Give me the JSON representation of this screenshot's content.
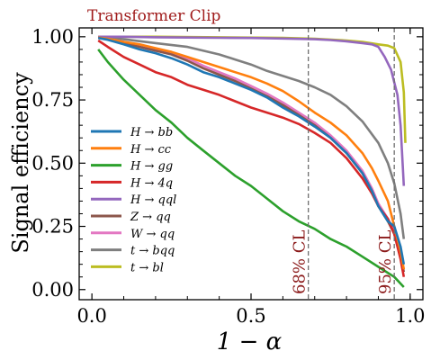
{
  "chart_data": {
    "type": "line",
    "title": "Transformer Clip",
    "title_color": "#a01c1c",
    "xlabel": "1 − α",
    "ylabel": "Signal efficiency",
    "xlim": [
      -0.04,
      1.04
    ],
    "ylim": [
      -0.04,
      1.035
    ],
    "xticks": [
      0.0,
      0.5,
      1.0
    ],
    "xtick_labels": [
      "0.0",
      "0.5",
      "1.0"
    ],
    "yticks": [
      0.0,
      0.25,
      0.5,
      0.75,
      1.0
    ],
    "ytick_labels": [
      "0.00",
      "0.25",
      "0.50",
      "0.75",
      "1.00"
    ],
    "grid": false,
    "legend_position": "center-left",
    "vlines": [
      {
        "x": 0.68,
        "label": "68% CL",
        "color": "#6e6e6e",
        "label_color": "#8b1a1a"
      },
      {
        "x": 0.95,
        "label": "95% CL",
        "color": "#6e6e6e",
        "label_color": "#8b1a1a"
      }
    ],
    "series": [
      {
        "name": "H → bb",
        "color": "#1f77b4",
        "x": [
          0.02,
          0.05,
          0.1,
          0.15,
          0.2,
          0.25,
          0.3,
          0.35,
          0.4,
          0.45,
          0.5,
          0.55,
          0.6,
          0.65,
          0.7,
          0.75,
          0.8,
          0.85,
          0.88,
          0.9,
          0.93,
          0.95,
          0.97,
          0.98
        ],
        "y": [
          0.995,
          0.988,
          0.97,
          0.95,
          0.935,
          0.915,
          0.89,
          0.86,
          0.84,
          0.815,
          0.79,
          0.76,
          0.72,
          0.685,
          0.645,
          0.6,
          0.54,
          0.46,
          0.39,
          0.33,
          0.27,
          0.25,
          0.17,
          0.1
        ]
      },
      {
        "name": "H → cc",
        "color": "#ff7f0e",
        "x": [
          0.02,
          0.05,
          0.1,
          0.15,
          0.2,
          0.25,
          0.3,
          0.35,
          0.4,
          0.45,
          0.5,
          0.55,
          0.6,
          0.65,
          0.7,
          0.75,
          0.8,
          0.85,
          0.88,
          0.9,
          0.93,
          0.95,
          0.97,
          0.98
        ],
        "y": [
          0.997,
          0.992,
          0.98,
          0.97,
          0.955,
          0.94,
          0.92,
          0.9,
          0.88,
          0.86,
          0.84,
          0.815,
          0.785,
          0.745,
          0.7,
          0.66,
          0.61,
          0.54,
          0.48,
          0.43,
          0.35,
          0.25,
          0.15,
          0.08
        ]
      },
      {
        "name": "H → gg",
        "color": "#2ca02c",
        "x": [
          0.02,
          0.05,
          0.1,
          0.15,
          0.2,
          0.25,
          0.3,
          0.35,
          0.4,
          0.45,
          0.5,
          0.55,
          0.6,
          0.65,
          0.7,
          0.75,
          0.8,
          0.85,
          0.9,
          0.95,
          0.98
        ],
        "y": [
          0.95,
          0.9,
          0.83,
          0.77,
          0.71,
          0.66,
          0.6,
          0.55,
          0.5,
          0.45,
          0.41,
          0.36,
          0.31,
          0.27,
          0.24,
          0.2,
          0.17,
          0.13,
          0.09,
          0.05,
          0.01
        ]
      },
      {
        "name": "H → 4q",
        "color": "#d62728",
        "x": [
          0.02,
          0.05,
          0.1,
          0.15,
          0.2,
          0.25,
          0.3,
          0.35,
          0.4,
          0.45,
          0.5,
          0.55,
          0.6,
          0.65,
          0.7,
          0.75,
          0.8,
          0.85,
          0.88,
          0.9,
          0.93,
          0.95,
          0.97,
          0.98
        ],
        "y": [
          0.985,
          0.96,
          0.92,
          0.89,
          0.86,
          0.84,
          0.81,
          0.79,
          0.77,
          0.745,
          0.72,
          0.7,
          0.68,
          0.655,
          0.62,
          0.58,
          0.52,
          0.44,
          0.38,
          0.33,
          0.28,
          0.22,
          0.12,
          0.05
        ]
      },
      {
        "name": "H → qql",
        "color": "#9467bd",
        "x": [
          0.02,
          0.1,
          0.2,
          0.3,
          0.4,
          0.5,
          0.6,
          0.7,
          0.75,
          0.8,
          0.85,
          0.88,
          0.9,
          0.92,
          0.94,
          0.96,
          0.97,
          0.98
        ],
        "y": [
          1.0,
          1.0,
          0.998,
          0.997,
          0.996,
          0.995,
          0.993,
          0.99,
          0.987,
          0.982,
          0.975,
          0.97,
          0.96,
          0.92,
          0.87,
          0.77,
          0.65,
          0.41
        ]
      },
      {
        "name": "Z → qq",
        "color": "#8c564b",
        "x": [
          0.02,
          0.05,
          0.1,
          0.15,
          0.2,
          0.25,
          0.3,
          0.35,
          0.4,
          0.45,
          0.5,
          0.55,
          0.6,
          0.65,
          0.7,
          0.75,
          0.8,
          0.85,
          0.88,
          0.9,
          0.93,
          0.95,
          0.97,
          0.98
        ],
        "y": [
          0.996,
          0.99,
          0.975,
          0.96,
          0.945,
          0.93,
          0.905,
          0.875,
          0.85,
          0.825,
          0.795,
          0.765,
          0.73,
          0.69,
          0.65,
          0.6,
          0.54,
          0.46,
          0.39,
          0.33,
          0.27,
          0.22,
          0.13,
          0.07
        ]
      },
      {
        "name": "W → qq",
        "color": "#e377c2",
        "x": [
          0.02,
          0.05,
          0.1,
          0.15,
          0.2,
          0.25,
          0.3,
          0.35,
          0.4,
          0.45,
          0.5,
          0.55,
          0.6,
          0.65,
          0.7,
          0.75,
          0.8,
          0.85,
          0.88,
          0.9,
          0.93,
          0.95,
          0.97,
          0.98
        ],
        "y": [
          0.997,
          0.992,
          0.98,
          0.965,
          0.95,
          0.935,
          0.915,
          0.885,
          0.86,
          0.835,
          0.805,
          0.775,
          0.74,
          0.7,
          0.66,
          0.61,
          0.55,
          0.47,
          0.4,
          0.34,
          0.28,
          0.23,
          0.14,
          0.08
        ]
      },
      {
        "name": "t → bqq",
        "color": "#7f7f7f",
        "x": [
          0.02,
          0.1,
          0.2,
          0.3,
          0.4,
          0.45,
          0.5,
          0.55,
          0.6,
          0.65,
          0.7,
          0.75,
          0.8,
          0.85,
          0.9,
          0.93,
          0.95,
          0.97,
          0.98
        ],
        "y": [
          0.999,
          0.99,
          0.975,
          0.96,
          0.93,
          0.91,
          0.89,
          0.865,
          0.845,
          0.825,
          0.8,
          0.77,
          0.725,
          0.665,
          0.58,
          0.5,
          0.42,
          0.3,
          0.2
        ]
      },
      {
        "name": "t → bl",
        "color": "#bcbd22",
        "x": [
          0.02,
          0.2,
          0.4,
          0.6,
          0.7,
          0.8,
          0.85,
          0.9,
          0.93,
          0.95,
          0.97,
          0.98,
          0.985
        ],
        "y": [
          1.0,
          1.0,
          0.998,
          0.996,
          0.992,
          0.985,
          0.98,
          0.97,
          0.965,
          0.955,
          0.9,
          0.78,
          0.58
        ]
      }
    ]
  }
}
